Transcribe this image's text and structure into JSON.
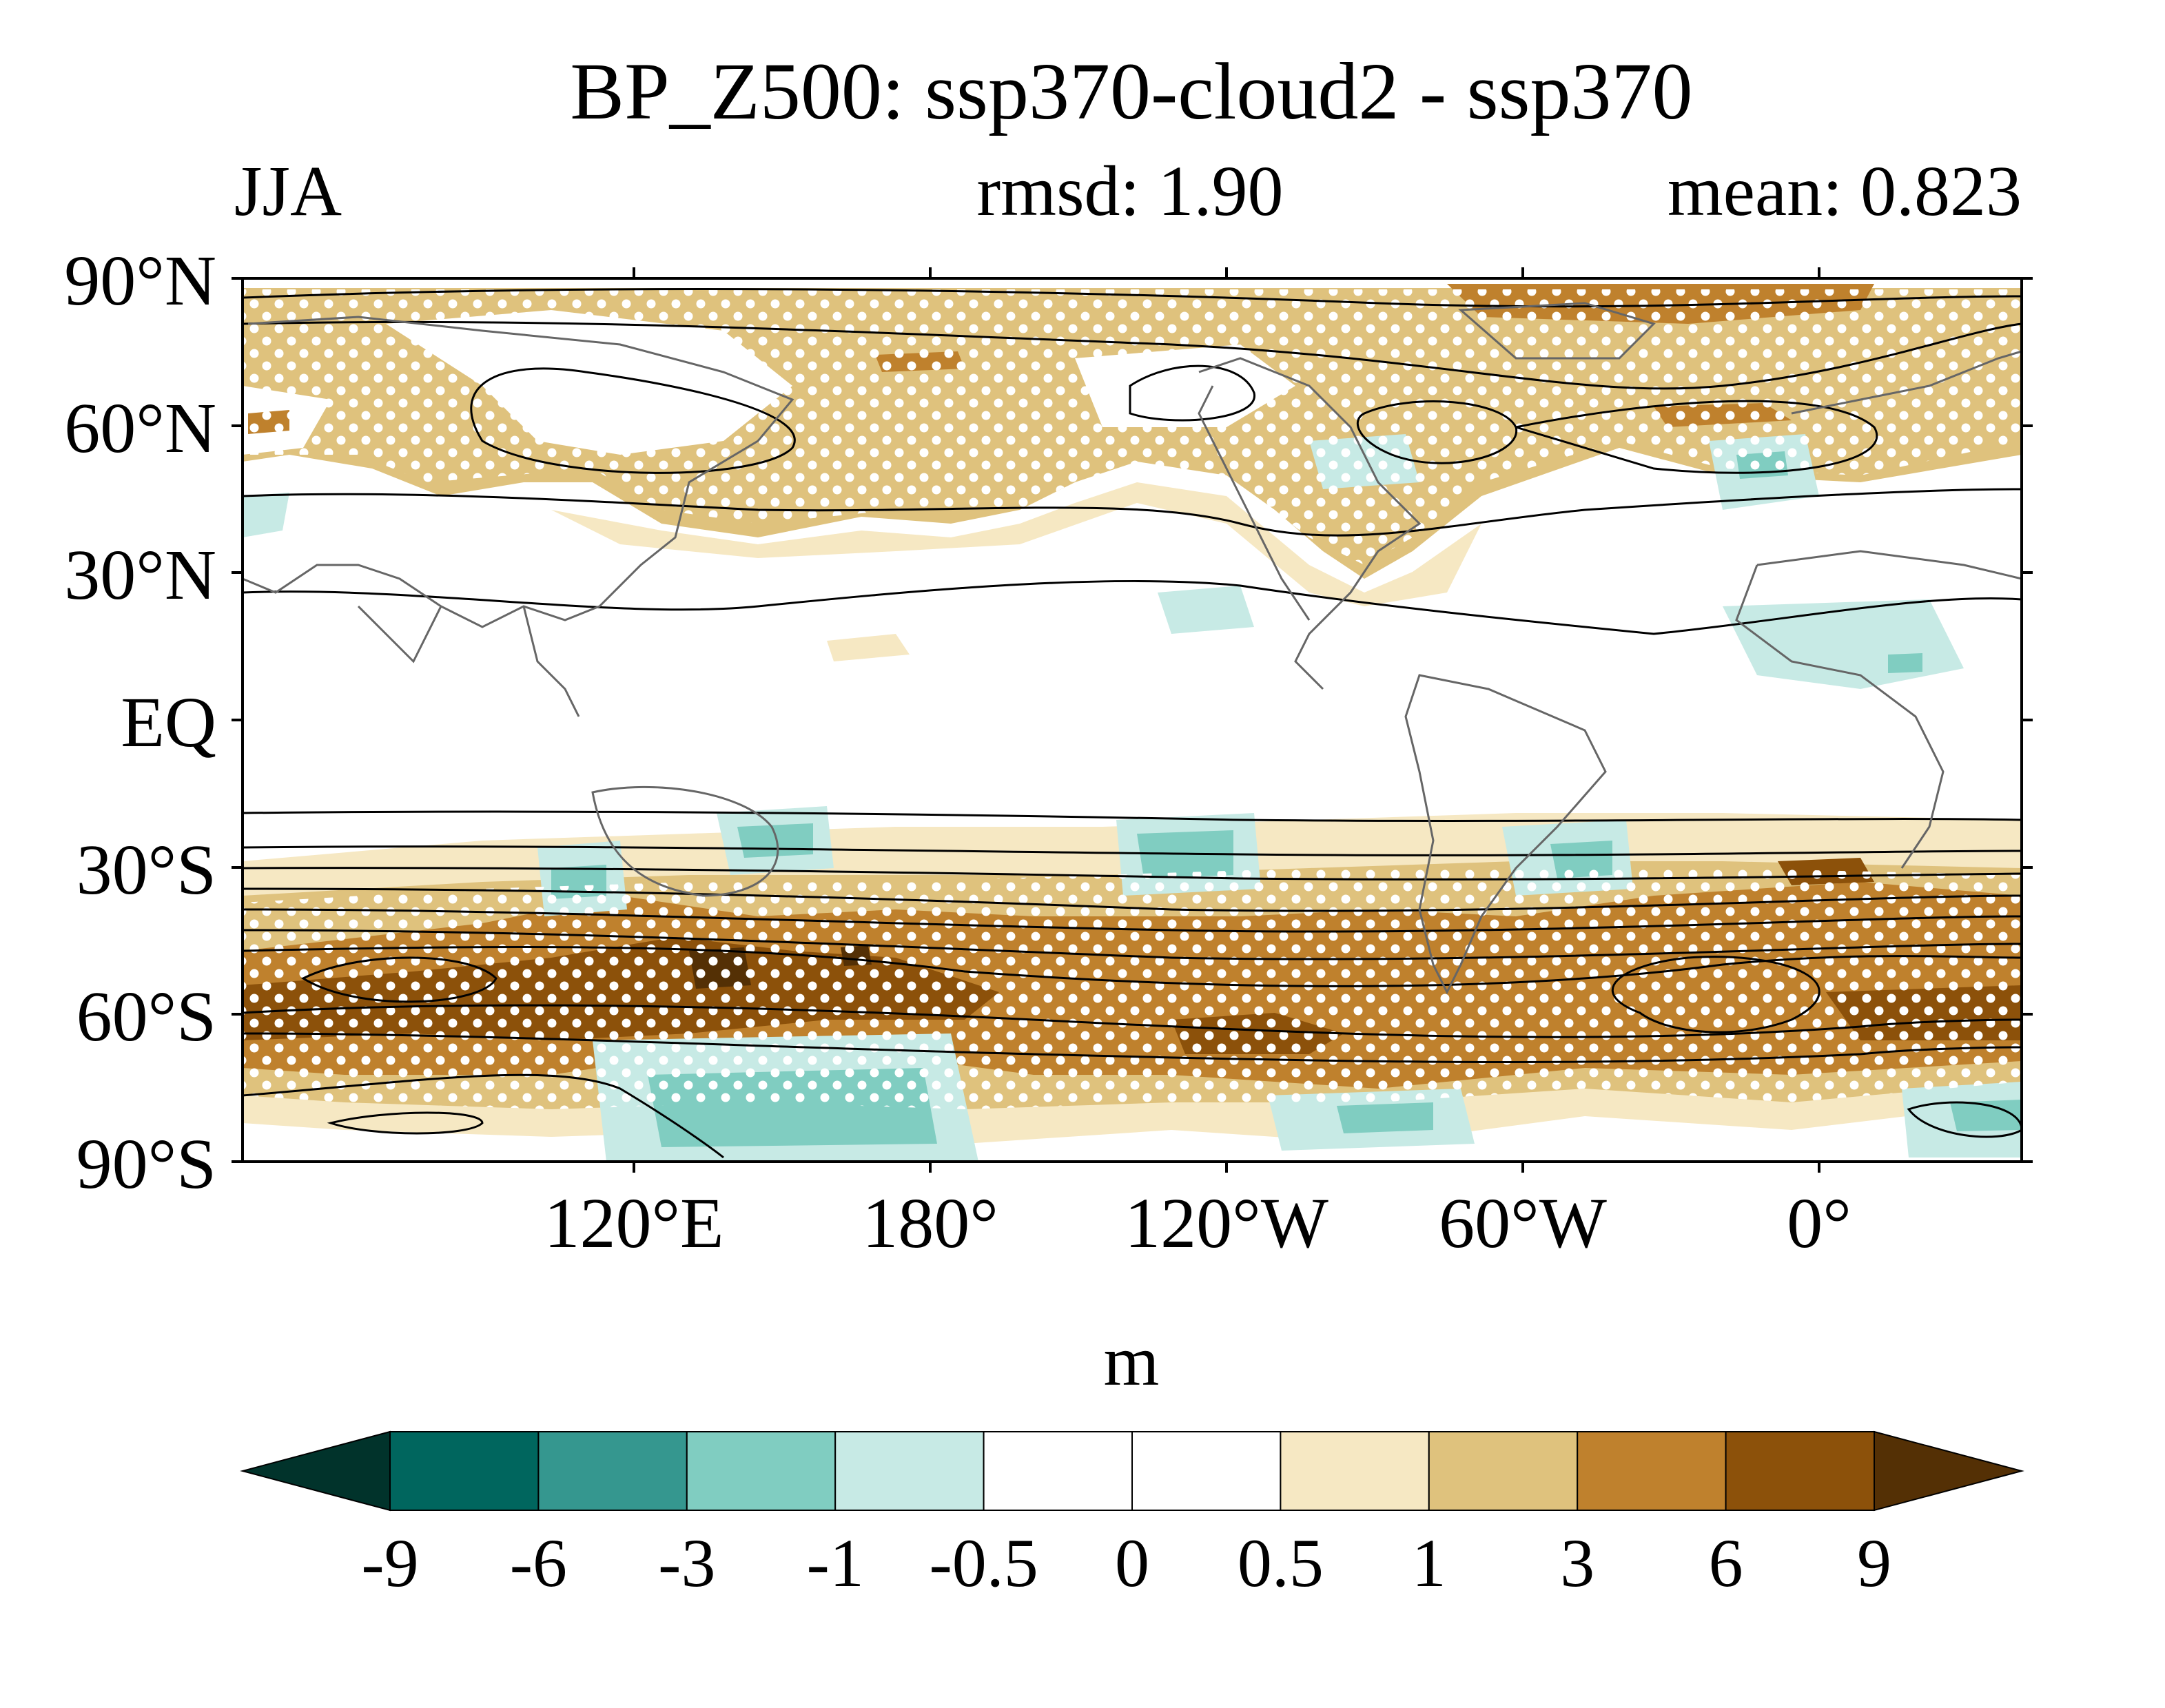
{
  "title": "BP_Z500: ssp370-cloud2 - ssp370",
  "season": "JJA",
  "rmsd": "rmsd: 1.90",
  "mean": "mean: 0.823",
  "lat_labels": [
    "90°N",
    "60°N",
    "30°N",
    "EQ",
    "30°S",
    "60°S",
    "90°S"
  ],
  "lon_labels": [
    "120°E",
    "180°",
    "120°W",
    "60°W",
    "0°"
  ],
  "colorbar": {
    "units": "m",
    "levels": [
      "-9",
      "-6",
      "-3",
      "-1",
      "-0.5",
      "0",
      "0.5",
      "1",
      "3",
      "6",
      "9"
    ],
    "colors": [
      "#01332b",
      "#00665e",
      "#35978f",
      "#80cdc1",
      "#c7eae5",
      "#ffffff",
      "#ffffff",
      "#f6e8c3",
      "#dfc27d",
      "#bf812d",
      "#8c510a",
      "#543005"
    ]
  }
}
